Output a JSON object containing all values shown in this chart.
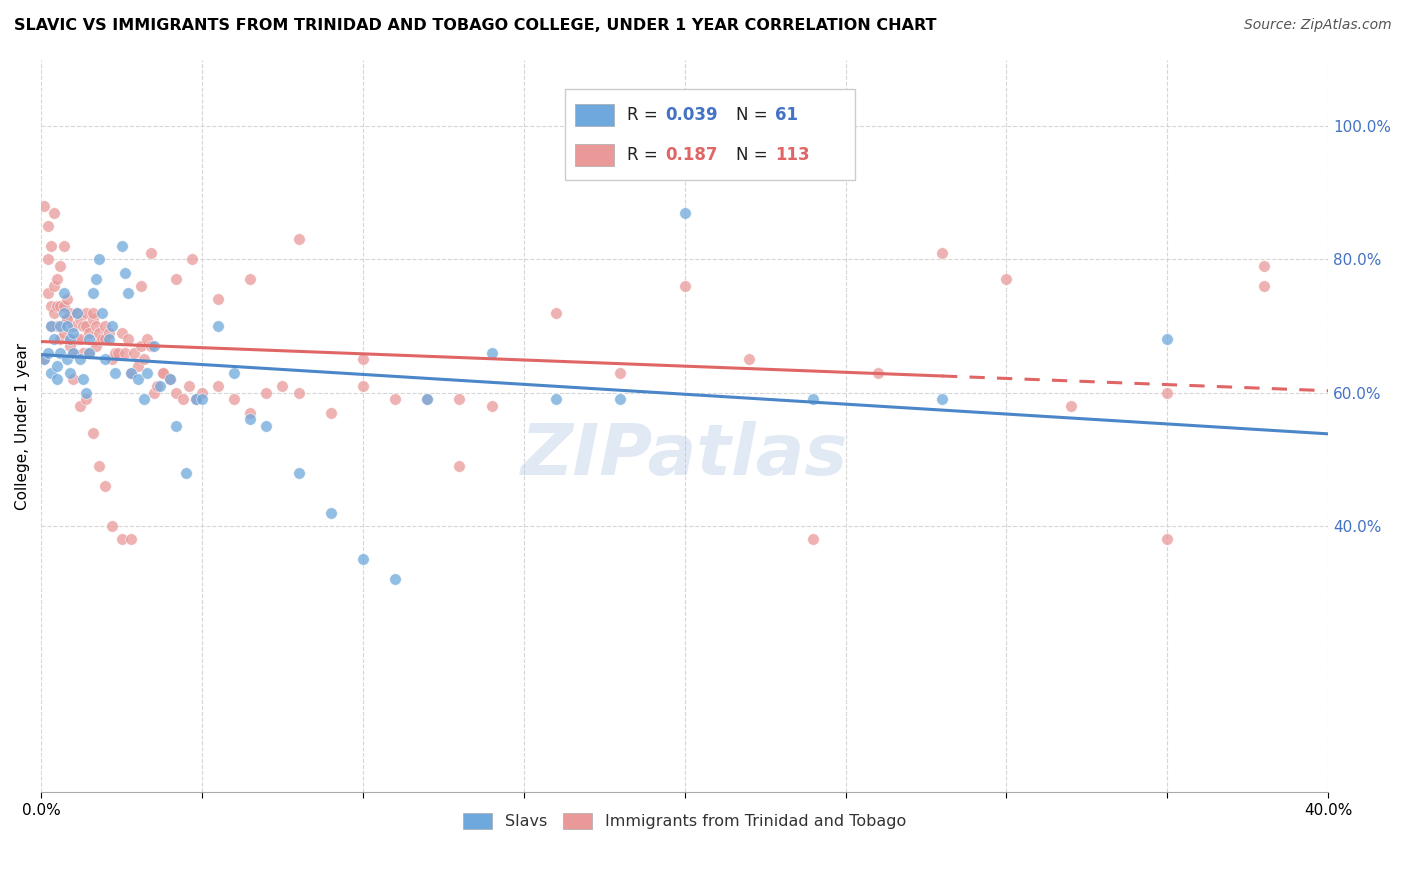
{
  "title": "SLAVIC VS IMMIGRANTS FROM TRINIDAD AND TOBAGO COLLEGE, UNDER 1 YEAR CORRELATION CHART",
  "source": "Source: ZipAtlas.com",
  "ylabel": "College, Under 1 year",
  "xlim": [
    0.0,
    0.4
  ],
  "ylim": [
    0.0,
    1.1
  ],
  "yticks": [
    0.4,
    0.6,
    0.8,
    1.0
  ],
  "ytick_labels": [
    "40.0%",
    "60.0%",
    "80.0%",
    "100.0%"
  ],
  "xticks": [
    0.0,
    0.05,
    0.1,
    0.15,
    0.2,
    0.25,
    0.3,
    0.35,
    0.4
  ],
  "xtick_labels": [
    "0.0%",
    "",
    "",
    "",
    "",
    "",
    "",
    "",
    "40.0%"
  ],
  "color_slavs": "#6fa8dc",
  "color_tt": "#ea9999",
  "color_line_slavs": "#4a86c8",
  "color_line_tt": "#e06666",
  "watermark": "ZIPatlas",
  "slavs_x": [
    0.001,
    0.002,
    0.003,
    0.003,
    0.004,
    0.005,
    0.005,
    0.006,
    0.006,
    0.007,
    0.007,
    0.008,
    0.008,
    0.009,
    0.009,
    0.01,
    0.01,
    0.011,
    0.012,
    0.013,
    0.014,
    0.015,
    0.015,
    0.016,
    0.017,
    0.018,
    0.019,
    0.02,
    0.021,
    0.022,
    0.023,
    0.025,
    0.026,
    0.027,
    0.028,
    0.03,
    0.032,
    0.033,
    0.035,
    0.037,
    0.04,
    0.042,
    0.045,
    0.048,
    0.05,
    0.055,
    0.06,
    0.065,
    0.07,
    0.08,
    0.09,
    0.1,
    0.11,
    0.12,
    0.14,
    0.16,
    0.18,
    0.2,
    0.24,
    0.28,
    0.35
  ],
  "slavs_y": [
    0.65,
    0.66,
    0.7,
    0.63,
    0.68,
    0.64,
    0.62,
    0.66,
    0.7,
    0.72,
    0.75,
    0.65,
    0.7,
    0.68,
    0.63,
    0.66,
    0.69,
    0.72,
    0.65,
    0.62,
    0.6,
    0.68,
    0.66,
    0.75,
    0.77,
    0.8,
    0.72,
    0.65,
    0.68,
    0.7,
    0.63,
    0.82,
    0.78,
    0.75,
    0.63,
    0.62,
    0.59,
    0.63,
    0.67,
    0.61,
    0.62,
    0.55,
    0.48,
    0.59,
    0.59,
    0.7,
    0.63,
    0.56,
    0.55,
    0.48,
    0.42,
    0.35,
    0.32,
    0.59,
    0.66,
    0.59,
    0.59,
    0.87,
    0.59,
    0.59,
    0.68
  ],
  "tt_x": [
    0.001,
    0.002,
    0.002,
    0.003,
    0.003,
    0.004,
    0.004,
    0.005,
    0.005,
    0.006,
    0.006,
    0.007,
    0.007,
    0.008,
    0.008,
    0.009,
    0.009,
    0.01,
    0.01,
    0.011,
    0.011,
    0.012,
    0.012,
    0.013,
    0.013,
    0.014,
    0.014,
    0.015,
    0.015,
    0.016,
    0.016,
    0.017,
    0.017,
    0.018,
    0.018,
    0.019,
    0.02,
    0.02,
    0.021,
    0.022,
    0.023,
    0.024,
    0.025,
    0.026,
    0.027,
    0.028,
    0.029,
    0.03,
    0.031,
    0.032,
    0.033,
    0.034,
    0.035,
    0.036,
    0.038,
    0.04,
    0.042,
    0.044,
    0.046,
    0.048,
    0.05,
    0.055,
    0.06,
    0.065,
    0.07,
    0.075,
    0.08,
    0.09,
    0.1,
    0.11,
    0.12,
    0.13,
    0.14,
    0.16,
    0.001,
    0.002,
    0.003,
    0.004,
    0.005,
    0.006,
    0.007,
    0.008,
    0.009,
    0.01,
    0.012,
    0.014,
    0.016,
    0.018,
    0.02,
    0.022,
    0.025,
    0.028,
    0.031,
    0.034,
    0.038,
    0.042,
    0.047,
    0.055,
    0.065,
    0.08,
    0.1,
    0.13,
    0.2,
    0.28,
    0.38,
    0.3,
    0.22,
    0.18,
    0.24,
    0.26,
    0.32,
    0.35,
    0.35,
    0.38
  ],
  "tt_y": [
    0.65,
    0.75,
    0.8,
    0.7,
    0.73,
    0.72,
    0.76,
    0.7,
    0.73,
    0.68,
    0.73,
    0.69,
    0.73,
    0.71,
    0.74,
    0.68,
    0.72,
    0.66,
    0.7,
    0.68,
    0.72,
    0.68,
    0.71,
    0.66,
    0.7,
    0.7,
    0.72,
    0.66,
    0.69,
    0.71,
    0.72,
    0.67,
    0.7,
    0.68,
    0.69,
    0.68,
    0.68,
    0.7,
    0.69,
    0.65,
    0.66,
    0.66,
    0.69,
    0.66,
    0.68,
    0.63,
    0.66,
    0.64,
    0.67,
    0.65,
    0.68,
    0.67,
    0.6,
    0.61,
    0.63,
    0.62,
    0.6,
    0.59,
    0.61,
    0.59,
    0.6,
    0.61,
    0.59,
    0.57,
    0.6,
    0.61,
    0.6,
    0.57,
    0.61,
    0.59,
    0.59,
    0.59,
    0.58,
    0.72,
    0.88,
    0.85,
    0.82,
    0.87,
    0.77,
    0.79,
    0.82,
    0.71,
    0.67,
    0.62,
    0.58,
    0.59,
    0.54,
    0.49,
    0.46,
    0.4,
    0.38,
    0.38,
    0.76,
    0.81,
    0.63,
    0.77,
    0.8,
    0.74,
    0.77,
    0.83,
    0.65,
    0.49,
    0.76,
    0.81,
    0.79,
    0.77,
    0.65,
    0.63,
    0.38,
    0.63,
    0.58,
    0.6,
    0.38,
    0.76
  ]
}
